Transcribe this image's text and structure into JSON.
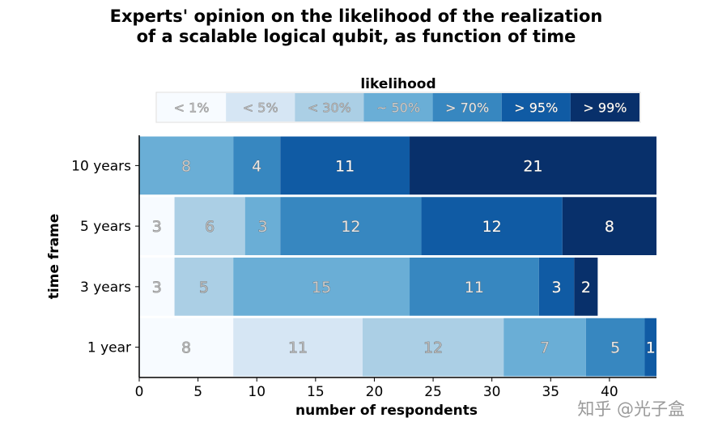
{
  "chart_data": {
    "type": "bar",
    "orientation": "horizontal",
    "stacked": true,
    "title_line1": "Experts' opinion on the likelihood of the realization",
    "title_line2": "of a scalable logical qubit, as function of time",
    "xlabel": "number of respondents",
    "ylabel": "time frame",
    "xlim": [
      0,
      44
    ],
    "xticks": [
      0,
      5,
      10,
      15,
      20,
      25,
      30,
      35,
      40
    ],
    "legend_title": "likelihood",
    "legend_placement": "top",
    "categories": [
      "10 years",
      "5 years",
      "3 years",
      "1 year"
    ],
    "series": [
      {
        "name": "< 1%",
        "color": "#f7fbff",
        "text_color": "#b8b8b8",
        "values": [
          0,
          3,
          3,
          8
        ]
      },
      {
        "name": "< 5%",
        "color": "#d6e6f4",
        "text_color": "#b8b8b8",
        "values": [
          0,
          0,
          0,
          11
        ]
      },
      {
        "name": "< 30%",
        "color": "#abcfe5",
        "text_color": "#b8b8b8",
        "values": [
          0,
          6,
          5,
          12
        ]
      },
      {
        "name": "~ 50%",
        "color": "#6aaed6",
        "text_color": "#cccccc",
        "values": [
          8,
          3,
          15,
          7
        ]
      },
      {
        "name": "> 70%",
        "color": "#3787c0",
        "text_color": "#e8e8e8",
        "values": [
          4,
          12,
          11,
          5
        ]
      },
      {
        "name": "> 95%",
        "color": "#105ba4",
        "text_color": "#ffffff",
        "values": [
          11,
          12,
          3,
          1
        ]
      },
      {
        "name": "> 99%",
        "color": "#08306b",
        "text_color": "#ffffff",
        "values": [
          21,
          8,
          2,
          0
        ]
      }
    ],
    "grid": false
  },
  "watermark": "知乎 @光子盒"
}
